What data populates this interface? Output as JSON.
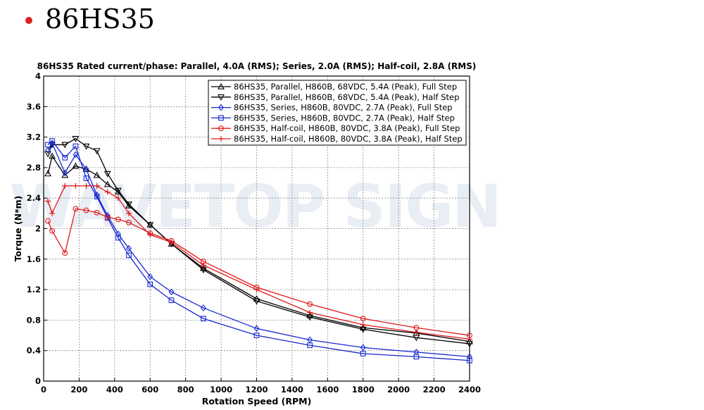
{
  "page": {
    "heading": "86HS35",
    "bullet_color": "#e02020"
  },
  "watermark": "WAVETOP SIGN",
  "chart_data": {
    "type": "line",
    "title": "86HS35 Rated current/phase: Parallel, 4.0A (RMS); Series, 2.0A (RMS); Half-coil, 2.8A (RMS)",
    "xlabel": "Rotation Speed (RPM)",
    "ylabel": "Torque (N*m)",
    "xlim": [
      0,
      2400
    ],
    "ylim": [
      0,
      4
    ],
    "xticks": [
      0,
      200,
      400,
      600,
      800,
      1000,
      1200,
      1400,
      1600,
      1800,
      2000,
      2200,
      2400
    ],
    "yticks": [
      0,
      0.4,
      0.8,
      1.2,
      1.6,
      2,
      2.4,
      2.8,
      3.2,
      3.6,
      4
    ],
    "ytick_labels": [
      "0",
      "0.4",
      "0.8",
      "1.2",
      "1.6",
      "2",
      "2.4",
      "2.8",
      "3.2",
      "3.6",
      "4"
    ],
    "grid": true,
    "legend_position": "top-right",
    "series": [
      {
        "name": "86HS35, Parallel, H860B, 68VDC, 5.4A (Peak), Full Step",
        "color": "#000000",
        "marker": "triangle-up",
        "x": [
          24,
          48,
          120,
          180,
          240,
          300,
          360,
          420,
          480,
          600,
          720,
          900,
          1200,
          1500,
          1800,
          2100,
          2400
        ],
        "y": [
          2.72,
          2.95,
          2.7,
          2.82,
          2.78,
          2.7,
          2.58,
          2.48,
          2.3,
          2.05,
          1.8,
          1.48,
          1.08,
          0.86,
          0.7,
          0.63,
          0.52
        ]
      },
      {
        "name": "86HS35, Parallel, H860B, 68VDC, 5.4A (Peak), Half Step",
        "color": "#000000",
        "marker": "triangle-down",
        "x": [
          24,
          48,
          120,
          180,
          240,
          300,
          360,
          420,
          480,
          600,
          720,
          900,
          1200,
          1500,
          1800,
          2100,
          2400
        ],
        "y": [
          2.98,
          3.1,
          3.1,
          3.18,
          3.08,
          3.02,
          2.72,
          2.5,
          2.32,
          2.05,
          1.8,
          1.46,
          1.05,
          0.84,
          0.68,
          0.57,
          0.49
        ]
      },
      {
        "name": "86HS35, Series, H860B, 80VDC, 2.7A (Peak), Full Step",
        "color": "#1428d0",
        "marker": "diamond",
        "x": [
          24,
          48,
          120,
          180,
          240,
          300,
          360,
          420,
          480,
          600,
          720,
          900,
          1200,
          1500,
          1800,
          2100,
          2400
        ],
        "y": [
          3.03,
          3.12,
          2.73,
          2.97,
          2.78,
          2.44,
          2.17,
          1.93,
          1.74,
          1.37,
          1.17,
          0.96,
          0.69,
          0.54,
          0.44,
          0.38,
          0.32
        ]
      },
      {
        "name": "86HS35, Series, H860B, 80VDC, 2.7A (Peak), Half Step",
        "color": "#1428d0",
        "marker": "square",
        "x": [
          24,
          48,
          120,
          180,
          240,
          300,
          360,
          420,
          480,
          600,
          720,
          900,
          1200,
          1500,
          1800,
          2100,
          2400
        ],
        "y": [
          3.1,
          3.15,
          2.93,
          3.08,
          2.66,
          2.42,
          2.14,
          1.88,
          1.65,
          1.27,
          1.06,
          0.82,
          0.6,
          0.47,
          0.36,
          0.32,
          0.27
        ]
      },
      {
        "name": "86HS35, Half-coil, H860B, 80VDC, 3.8A (Peak), Full Step",
        "color": "#e01818",
        "marker": "circle",
        "x": [
          24,
          48,
          120,
          180,
          240,
          300,
          360,
          420,
          480,
          600,
          720,
          900,
          1200,
          1500,
          1800,
          2100,
          2400
        ],
        "y": [
          2.1,
          1.97,
          1.68,
          2.26,
          2.24,
          2.21,
          2.15,
          2.12,
          2.08,
          1.94,
          1.84,
          1.57,
          1.23,
          1.01,
          0.82,
          0.7,
          0.6
        ]
      },
      {
        "name": "86HS35, Half-coil, H860B, 80VDC, 3.8A (Peak), Half Step",
        "color": "#e01818",
        "marker": "plus",
        "x": [
          24,
          48,
          120,
          180,
          240,
          300,
          360,
          420,
          480,
          600,
          720,
          900,
          1200,
          1500,
          1800,
          2100,
          2400
        ],
        "y": [
          2.36,
          2.2,
          2.56,
          2.56,
          2.56,
          2.56,
          2.48,
          2.4,
          2.2,
          1.92,
          1.82,
          1.52,
          1.2,
          0.9,
          0.74,
          0.64,
          0.55
        ]
      }
    ]
  }
}
